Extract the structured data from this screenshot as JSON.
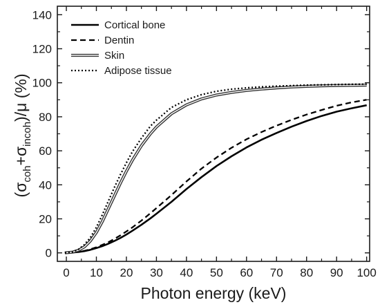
{
  "chart_data": {
    "type": "line",
    "xlabel": "Photon energy (keV)",
    "ylabel": {
      "open": "(σ",
      "sub1": "coh",
      "plus": "+σ",
      "sub2": "incoh",
      "close": ")/μ (%)"
    },
    "xlim": [
      -3,
      101
    ],
    "ylim": [
      -5,
      145
    ],
    "x_ticks": [
      0,
      10,
      20,
      30,
      40,
      50,
      60,
      70,
      80,
      90,
      100
    ],
    "y_ticks": [
      0,
      20,
      40,
      60,
      80,
      100,
      120,
      140
    ],
    "grid": false,
    "legend_position": "top-left",
    "x": [
      2,
      4,
      6,
      8,
      10,
      12,
      14,
      16,
      18,
      20,
      22,
      25,
      28,
      30,
      35,
      40,
      45,
      50,
      55,
      60,
      65,
      70,
      75,
      80,
      85,
      90,
      95,
      100
    ],
    "series": [
      {
        "name": "Cortical bone",
        "style": "solid",
        "values": [
          0.2,
          0.5,
          1.0,
          1.8,
          2.8,
          4.0,
          5.4,
          7.0,
          8.8,
          10.8,
          13.0,
          16.5,
          20.3,
          23.0,
          30.0,
          37.5,
          44.5,
          51.0,
          56.8,
          62.0,
          66.5,
          70.5,
          74.2,
          77.5,
          80.5,
          83.0,
          85.0,
          86.8
        ]
      },
      {
        "name": "Dentin",
        "style": "dashed",
        "values": [
          0.2,
          0.6,
          1.2,
          2.1,
          3.3,
          4.7,
          6.3,
          8.2,
          10.3,
          12.6,
          15.0,
          19.0,
          23.3,
          26.3,
          34.0,
          42.0,
          49.5,
          56.0,
          61.8,
          66.8,
          71.0,
          74.8,
          78.2,
          81.3,
          84.0,
          86.5,
          88.5,
          90.0
        ]
      },
      {
        "name": "Skin",
        "style": "double",
        "values": [
          0.4,
          1.5,
          3.5,
          7.0,
          12.0,
          18.5,
          26.0,
          33.5,
          41.0,
          48.0,
          54.5,
          63.0,
          70.0,
          74.0,
          81.8,
          87.0,
          90.5,
          92.8,
          94.3,
          95.5,
          96.3,
          97.0,
          97.5,
          97.9,
          98.2,
          98.4,
          98.5,
          98.6
        ]
      },
      {
        "name": "Adipose tissue",
        "style": "dotted",
        "values": [
          0.5,
          2.0,
          4.8,
          9.0,
          15.0,
          22.5,
          30.5,
          38.5,
          46.0,
          53.0,
          59.5,
          67.5,
          74.5,
          78.0,
          85.5,
          90.0,
          93.0,
          95.0,
          96.2,
          97.0,
          97.6,
          98.0,
          98.3,
          98.6,
          98.8,
          99.0,
          99.1,
          99.2
        ]
      }
    ]
  }
}
